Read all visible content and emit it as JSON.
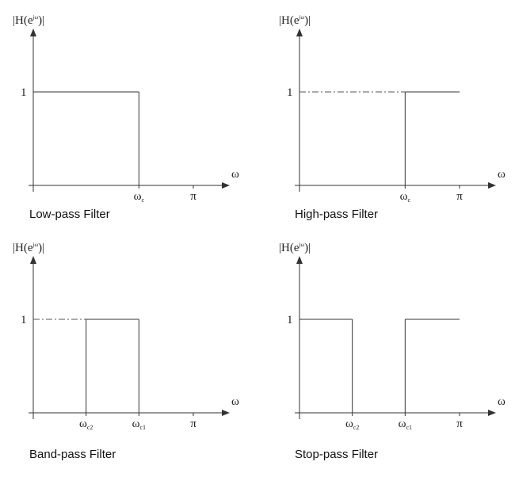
{
  "panels": [
    {
      "id": "low-pass",
      "caption": "Low-pass Filter",
      "y_axis_label": {
        "main": "|H(e",
        "sup": "jω",
        "end": ")|"
      },
      "y_tick_label": "1",
      "x_axis_label": "ω",
      "x_ticks": [
        {
          "base": "ω",
          "sub": "c"
        },
        {
          "base": "π",
          "sub": ""
        }
      ],
      "passbands": [
        [
          0,
          0.66
        ]
      ],
      "dashed_guide": false
    },
    {
      "id": "high-pass",
      "caption": "High-pass Filter",
      "y_axis_label": {
        "main": "|H(e",
        "sup": "jω",
        "end": ")|"
      },
      "y_tick_label": "1",
      "x_axis_label": "ω",
      "x_ticks": [
        {
          "base": "ω",
          "sub": "c"
        },
        {
          "base": "π",
          "sub": ""
        }
      ],
      "passbands": [
        [
          0.66,
          1
        ]
      ],
      "dashed_guide": true
    },
    {
      "id": "band-pass",
      "caption": "Band-pass Filter",
      "y_axis_label": {
        "main": "|H(e",
        "sup": "jω",
        "end": ")|"
      },
      "y_tick_label": "1",
      "x_axis_label": "ω",
      "x_ticks": [
        {
          "base": "ω",
          "sub": "c2"
        },
        {
          "base": "ω",
          "sub": "c1"
        },
        {
          "base": "π",
          "sub": ""
        }
      ],
      "passbands": [
        [
          0.33,
          0.66
        ]
      ],
      "dashed_guide": true
    },
    {
      "id": "stop-pass",
      "caption": "Stop-pass Filter",
      "y_axis_label": {
        "main": "|H(e",
        "sup": "jω",
        "end": ")|"
      },
      "y_tick_label": "1",
      "x_axis_label": "ω",
      "x_ticks": [
        {
          "base": "ω",
          "sub": "c2"
        },
        {
          "base": "ω",
          "sub": "c1"
        },
        {
          "base": "π",
          "sub": ""
        }
      ],
      "passbands": [
        [
          0,
          0.33
        ],
        [
          0.66,
          1
        ]
      ],
      "dashed_guide": false
    }
  ]
}
